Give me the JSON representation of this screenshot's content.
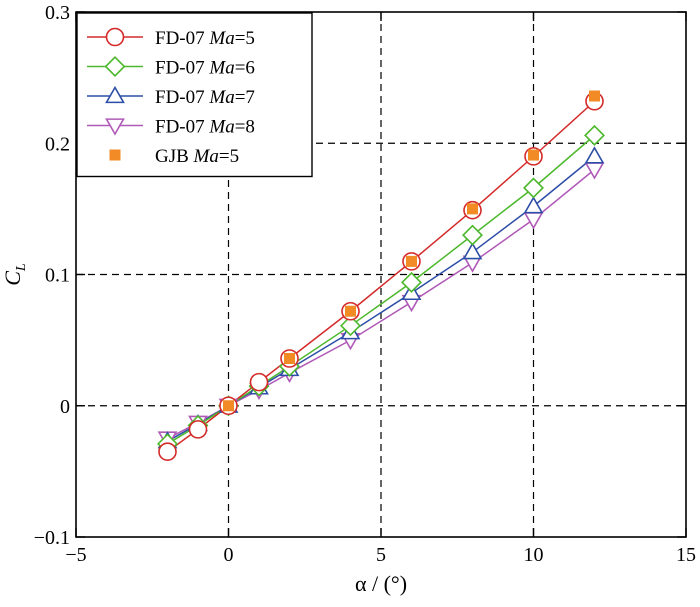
{
  "chart_data": {
    "type": "line",
    "xlabel": "α / (°)",
    "ylabel": {
      "main": "C",
      "sub": "L"
    },
    "xlim": [
      -5,
      15
    ],
    "ylim": [
      -0.1,
      0.3
    ],
    "xticks": [
      -5,
      0,
      5,
      10,
      15
    ],
    "yticks": [
      -0.1,
      0,
      0.1,
      0.2,
      0.3
    ],
    "xtick_labels": [
      "−5",
      "0",
      "5",
      "10",
      "15"
    ],
    "ytick_labels": [
      "−0.1",
      "0",
      "0.1",
      "0.2",
      "0.3"
    ],
    "grid_x": [
      0,
      5,
      10
    ],
    "grid_y": [
      0,
      0.1,
      0.2
    ],
    "legend_position": "top-left",
    "series": [
      {
        "name": "FD-07 Ma=5",
        "legend_prefix": "FD-07 ",
        "legend_italic": "Ma",
        "legend_suffix": "=5",
        "color": "#d42a2a",
        "marker": "circle",
        "line": true,
        "x": [
          -2,
          -1,
          0,
          1,
          2,
          4,
          6,
          8,
          10,
          12
        ],
        "y": [
          -0.035,
          -0.018,
          0.0,
          0.018,
          0.036,
          0.072,
          0.11,
          0.149,
          0.19,
          0.232
        ]
      },
      {
        "name": "FD-07 Ma=6",
        "legend_prefix": "FD-07 ",
        "legend_italic": "Ma",
        "legend_suffix": "=6",
        "color": "#4cb82c",
        "marker": "diamond",
        "line": true,
        "x": [
          -2,
          -1,
          0,
          1,
          2,
          4,
          6,
          8,
          10,
          12
        ],
        "y": [
          -0.029,
          -0.015,
          0.0,
          0.015,
          0.03,
          0.061,
          0.094,
          0.13,
          0.166,
          0.206
        ]
      },
      {
        "name": "FD-07 Ma=7",
        "legend_prefix": "FD-07 ",
        "legend_italic": "Ma",
        "legend_suffix": "=7",
        "color": "#2d4ea6",
        "marker": "triangle-up",
        "line": true,
        "x": [
          -2,
          -1,
          0,
          1,
          2,
          4,
          6,
          8,
          10,
          12
        ],
        "y": [
          -0.027,
          -0.014,
          0.0,
          0.014,
          0.028,
          0.056,
          0.086,
          0.117,
          0.152,
          0.19
        ]
      },
      {
        "name": "FD-07 Ma=8",
        "legend_prefix": "FD-07 ",
        "legend_italic": "Ma",
        "legend_suffix": "=8",
        "color": "#b05ab8",
        "marker": "triangle-down",
        "line": true,
        "x": [
          -2,
          -1,
          0,
          1,
          2,
          4,
          6,
          8,
          10,
          12
        ],
        "y": [
          -0.025,
          -0.013,
          0.0,
          0.012,
          0.025,
          0.05,
          0.079,
          0.109,
          0.142,
          0.18
        ]
      },
      {
        "name": "GJB Ma=5",
        "legend_prefix": "GJB ",
        "legend_italic": "Ma",
        "legend_suffix": "=5",
        "color": "#f28a25",
        "marker": "square",
        "line": false,
        "x": [
          0,
          2,
          4,
          6,
          8,
          10,
          12
        ],
        "y": [
          0.0,
          0.036,
          0.072,
          0.11,
          0.15,
          0.191,
          0.236
        ]
      }
    ]
  }
}
